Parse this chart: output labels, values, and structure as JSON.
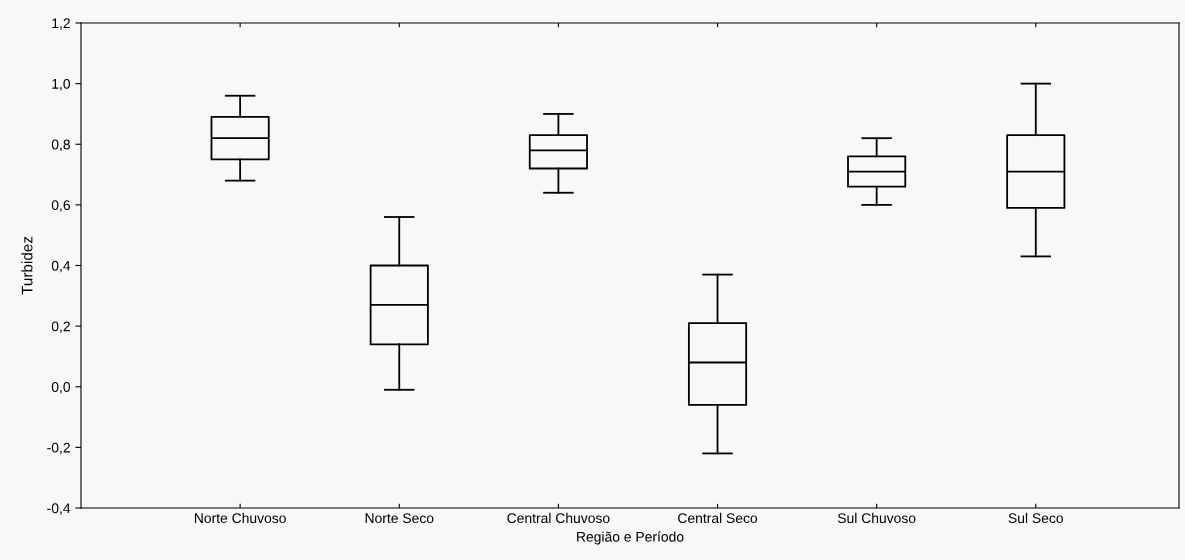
{
  "chart_data": {
    "type": "box",
    "xlabel": "Região e Período",
    "ylabel": "Turbidez",
    "categories": [
      "Norte Chuvoso",
      "Norte Seco",
      "Central Chuvoso",
      "Central Seco",
      "Sul Chuvoso",
      "Sul Seco"
    ],
    "boxes": [
      {
        "low": 0.68,
        "q1": 0.75,
        "median": 0.82,
        "q3": 0.89,
        "high": 0.96
      },
      {
        "low": -0.01,
        "q1": 0.14,
        "median": 0.27,
        "q3": 0.4,
        "high": 0.56
      },
      {
        "low": 0.64,
        "q1": 0.72,
        "median": 0.78,
        "q3": 0.83,
        "high": 0.9
      },
      {
        "low": -0.22,
        "q1": -0.06,
        "median": 0.08,
        "q3": 0.21,
        "high": 0.37
      },
      {
        "low": 0.6,
        "q1": 0.66,
        "median": 0.71,
        "q3": 0.76,
        "high": 0.82
      },
      {
        "low": 0.43,
        "q1": 0.59,
        "median": 0.71,
        "q3": 0.83,
        "high": 1.0
      }
    ],
    "color": "#000000",
    "ylim": [
      -0.4,
      1.2
    ],
    "yticks": [
      {
        "value": -0.4,
        "label": "-0,4"
      },
      {
        "value": -0.2,
        "label": "-0,2"
      },
      {
        "value": 0,
        "label": "0,0"
      },
      {
        "value": 0.2,
        "label": "0,2"
      },
      {
        "value": 0.4,
        "label": "0,4"
      },
      {
        "value": 0.6,
        "label": "0,6"
      },
      {
        "value": 0.8,
        "label": "0,8"
      },
      {
        "value": 1.0,
        "label": "1,0"
      },
      {
        "value": 1.2,
        "label": "1,2"
      }
    ],
    "grid": false,
    "legend": false
  }
}
